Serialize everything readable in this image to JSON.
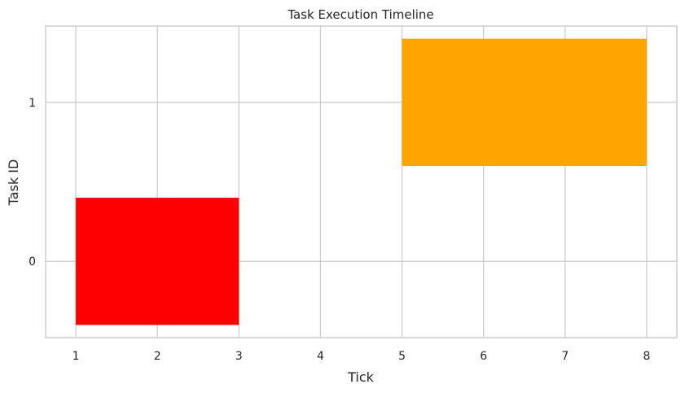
{
  "chart_data": {
    "type": "bar",
    "orientation": "horizontal",
    "title": "Task Execution Timeline",
    "xlabel": "Tick",
    "ylabel": "Task ID",
    "xlim": [
      0.63,
      8.37
    ],
    "ylim": [
      -0.48,
      1.48
    ],
    "xticks": [
      1,
      2,
      3,
      4,
      5,
      6,
      7,
      8
    ],
    "yticks": [
      0,
      1
    ],
    "grid": true,
    "bars": [
      {
        "task": 0,
        "start": 1,
        "end": 3,
        "color": "#ff0000"
      },
      {
        "task": 1,
        "start": 5,
        "end": 8,
        "color": "#ffa500"
      }
    ]
  }
}
